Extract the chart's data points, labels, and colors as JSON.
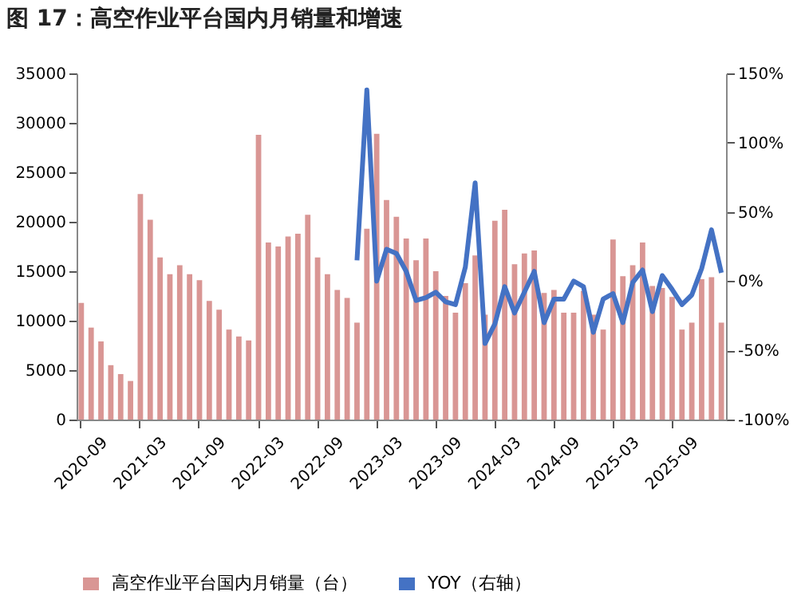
{
  "chart_data": {
    "type": "bar",
    "title": "图 17：高空作业平台国内月销量和增速",
    "categories": [
      "2020-09",
      null,
      null,
      null,
      null,
      null,
      "2021-03",
      null,
      null,
      null,
      null,
      null,
      "2021-09",
      null,
      null,
      null,
      null,
      null,
      "2022-03",
      null,
      null,
      null,
      null,
      null,
      "2022-09",
      null,
      null,
      null,
      null,
      null,
      "2023-03",
      null,
      null,
      null,
      null,
      null,
      "2023-09",
      null,
      null,
      null,
      null,
      null,
      "2024-03",
      null,
      null,
      null,
      null,
      null,
      "2024-09",
      null,
      null,
      null,
      null,
      null,
      "2025-03",
      null,
      null,
      null,
      null,
      null,
      "2025-09",
      null,
      null,
      null,
      null,
      null
    ],
    "series": [
      {
        "name": "高空作业平台国内月销量（台）",
        "color": "#d99694",
        "values": [
          11800,
          9300,
          7900,
          5500,
          4600,
          3900,
          22800,
          20200,
          16400,
          14700,
          15600,
          14700,
          14100,
          12000,
          11100,
          9100,
          8400,
          8000,
          28800,
          17900,
          17500,
          18500,
          18800,
          20700,
          16400,
          14700,
          13100,
          12300,
          9800,
          19300,
          28900,
          22200,
          20500,
          18300,
          16100,
          18300,
          15000,
          12500,
          10800,
          13800,
          16600,
          10600,
          20100,
          21200,
          15700,
          16800,
          17100,
          12800,
          13100,
          10800,
          10800,
          13000,
          10600,
          9100,
          18200,
          14500,
          15600,
          17900,
          13500,
          13300,
          12400,
          9100,
          9800,
          14200,
          14400,
          9800
        ]
      },
      {
        "name": "YOY（右轴）",
        "type": "line",
        "axis": "y2",
        "color": "#4472c4",
        "values": [
          null,
          null,
          null,
          null,
          null,
          null,
          null,
          null,
          null,
          null,
          null,
          null,
          null,
          null,
          null,
          null,
          null,
          null,
          null,
          null,
          null,
          null,
          null,
          null,
          null,
          null,
          null,
          null,
          15,
          138,
          0,
          23,
          20,
          7,
          -14,
          -12,
          -8,
          -15,
          -17,
          10,
          71,
          -45,
          -31,
          -4,
          -23,
          -8,
          7,
          -30,
          -13,
          -13,
          0,
          -4,
          -37,
          -13,
          -9,
          -30,
          -1,
          8,
          -22,
          4,
          -6,
          -17,
          -10,
          9,
          37,
          6
        ]
      }
    ],
    "ylim": [
      0,
      35000
    ],
    "yticks": [
      0,
      5000,
      10000,
      15000,
      20000,
      25000,
      30000,
      35000
    ],
    "y2lim": [
      -100,
      150
    ],
    "y2ticks": [
      {
        "value": -100,
        "label": "-100%"
      },
      {
        "value": -50,
        "label": "-50%"
      },
      {
        "value": 0,
        "label": "0%"
      },
      {
        "value": 50,
        "label": "50%"
      },
      {
        "value": 100,
        "label": "100%"
      },
      {
        "value": 150,
        "label": "150%"
      }
    ],
    "legend": "bottom",
    "grid": false,
    "line_style": "solid",
    "marker": "none"
  }
}
